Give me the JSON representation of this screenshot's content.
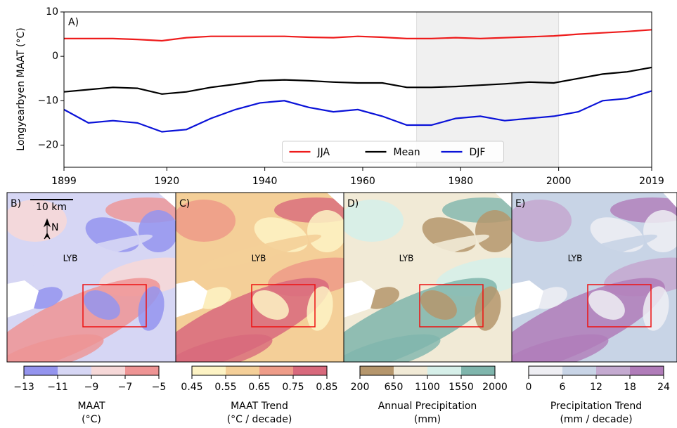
{
  "chart_data": {
    "type": "line",
    "panel_label": "A)",
    "ylabel": "Longyearbyen MAAT (°C)",
    "x": [
      1899,
      1904,
      1909,
      1914,
      1919,
      1924,
      1929,
      1934,
      1939,
      1944,
      1949,
      1954,
      1959,
      1964,
      1969,
      1974,
      1979,
      1984,
      1989,
      1994,
      1999,
      2004,
      2009,
      2014,
      2019
    ],
    "series": [
      {
        "name": "JJA",
        "color": "#ee1c1c",
        "values": [
          4,
          4,
          4,
          3.8,
          3.5,
          4.2,
          4.5,
          4.5,
          4.5,
          4.5,
          4.3,
          4.2,
          4.5,
          4.3,
          4,
          4,
          4.2,
          4,
          4.2,
          4.4,
          4.6,
          5,
          5.3,
          5.6,
          6
        ]
      },
      {
        "name": "Mean",
        "color": "#000000",
        "values": [
          -8,
          -7.5,
          -7,
          -7.2,
          -8.5,
          -8,
          -7,
          -6.3,
          -5.5,
          -5.3,
          -5.5,
          -5.8,
          -6,
          -6,
          -7,
          -7,
          -6.8,
          -6.5,
          -6.2,
          -5.8,
          -6,
          -5,
          -4,
          -3.5,
          -2.5
        ]
      },
      {
        "name": "DJF",
        "color": "#0a12d8",
        "values": [
          -12,
          -15,
          -14.5,
          -15,
          -17,
          -16.5,
          -14,
          -12,
          -10.5,
          -10,
          -11.5,
          -12.5,
          -12,
          -13.5,
          -15.5,
          -15.5,
          -14,
          -13.5,
          -14.5,
          -14,
          -13.5,
          -12.5,
          -10,
          -9.5,
          -7.8
        ]
      }
    ],
    "xlim": [
      1899,
      2019
    ],
    "xticks": [
      1899,
      1920,
      1940,
      1960,
      1980,
      2000,
      2019
    ],
    "ylim": [
      -25,
      10
    ],
    "yticks": [
      {
        "value": -20,
        "label": "−20"
      },
      {
        "value": -10,
        "label": "−10"
      },
      0,
      10
    ],
    "shade": [
      1971,
      2000
    ],
    "legend": "bottom"
  },
  "maps": [
    {
      "label": "B)",
      "place": "LYB",
      "scale": "10 km",
      "north": "N"
    },
    {
      "label": "C)",
      "place": "LYB"
    },
    {
      "label": "D)",
      "place": "LYB"
    },
    {
      "label": "E)",
      "place": "LYB"
    }
  ],
  "colorbars": [
    {
      "label": "MAAT",
      "unit": "(°C)",
      "ticks": [
        {
          "value": -13,
          "label": "−13"
        },
        {
          "value": -11,
          "label": "−11"
        },
        {
          "value": -9,
          "label": "−9"
        },
        {
          "value": -7,
          "label": "−7"
        },
        {
          "value": -5,
          "label": "−5"
        }
      ],
      "colors": [
        "#9494ee",
        "#d6d6f4",
        "#f6d8d8",
        "#ee9494"
      ]
    },
    {
      "label": "MAAT Trend",
      "unit": "(°C / decade)",
      "ticks": [
        0.45,
        0.55,
        0.65,
        0.75,
        0.85
      ],
      "colors": [
        "#fdf3c4",
        "#f4cf98",
        "#ee9c88",
        "#d8697c"
      ]
    },
    {
      "label": "Annual Precipitation",
      "unit": "(mm)",
      "ticks": [
        200,
        650,
        1100,
        1550,
        2000
      ],
      "colors": [
        "#b5966c",
        "#f1ead6",
        "#d6efe9",
        "#7fb5ac"
      ]
    },
    {
      "label": "Precipitation Trend",
      "unit": "(mm / decade)",
      "ticks": [
        0,
        6,
        12,
        18,
        24
      ],
      "colors": [
        "#eeeef3",
        "#c8d4e6",
        "#c4aad0",
        "#b07cb9"
      ]
    }
  ]
}
